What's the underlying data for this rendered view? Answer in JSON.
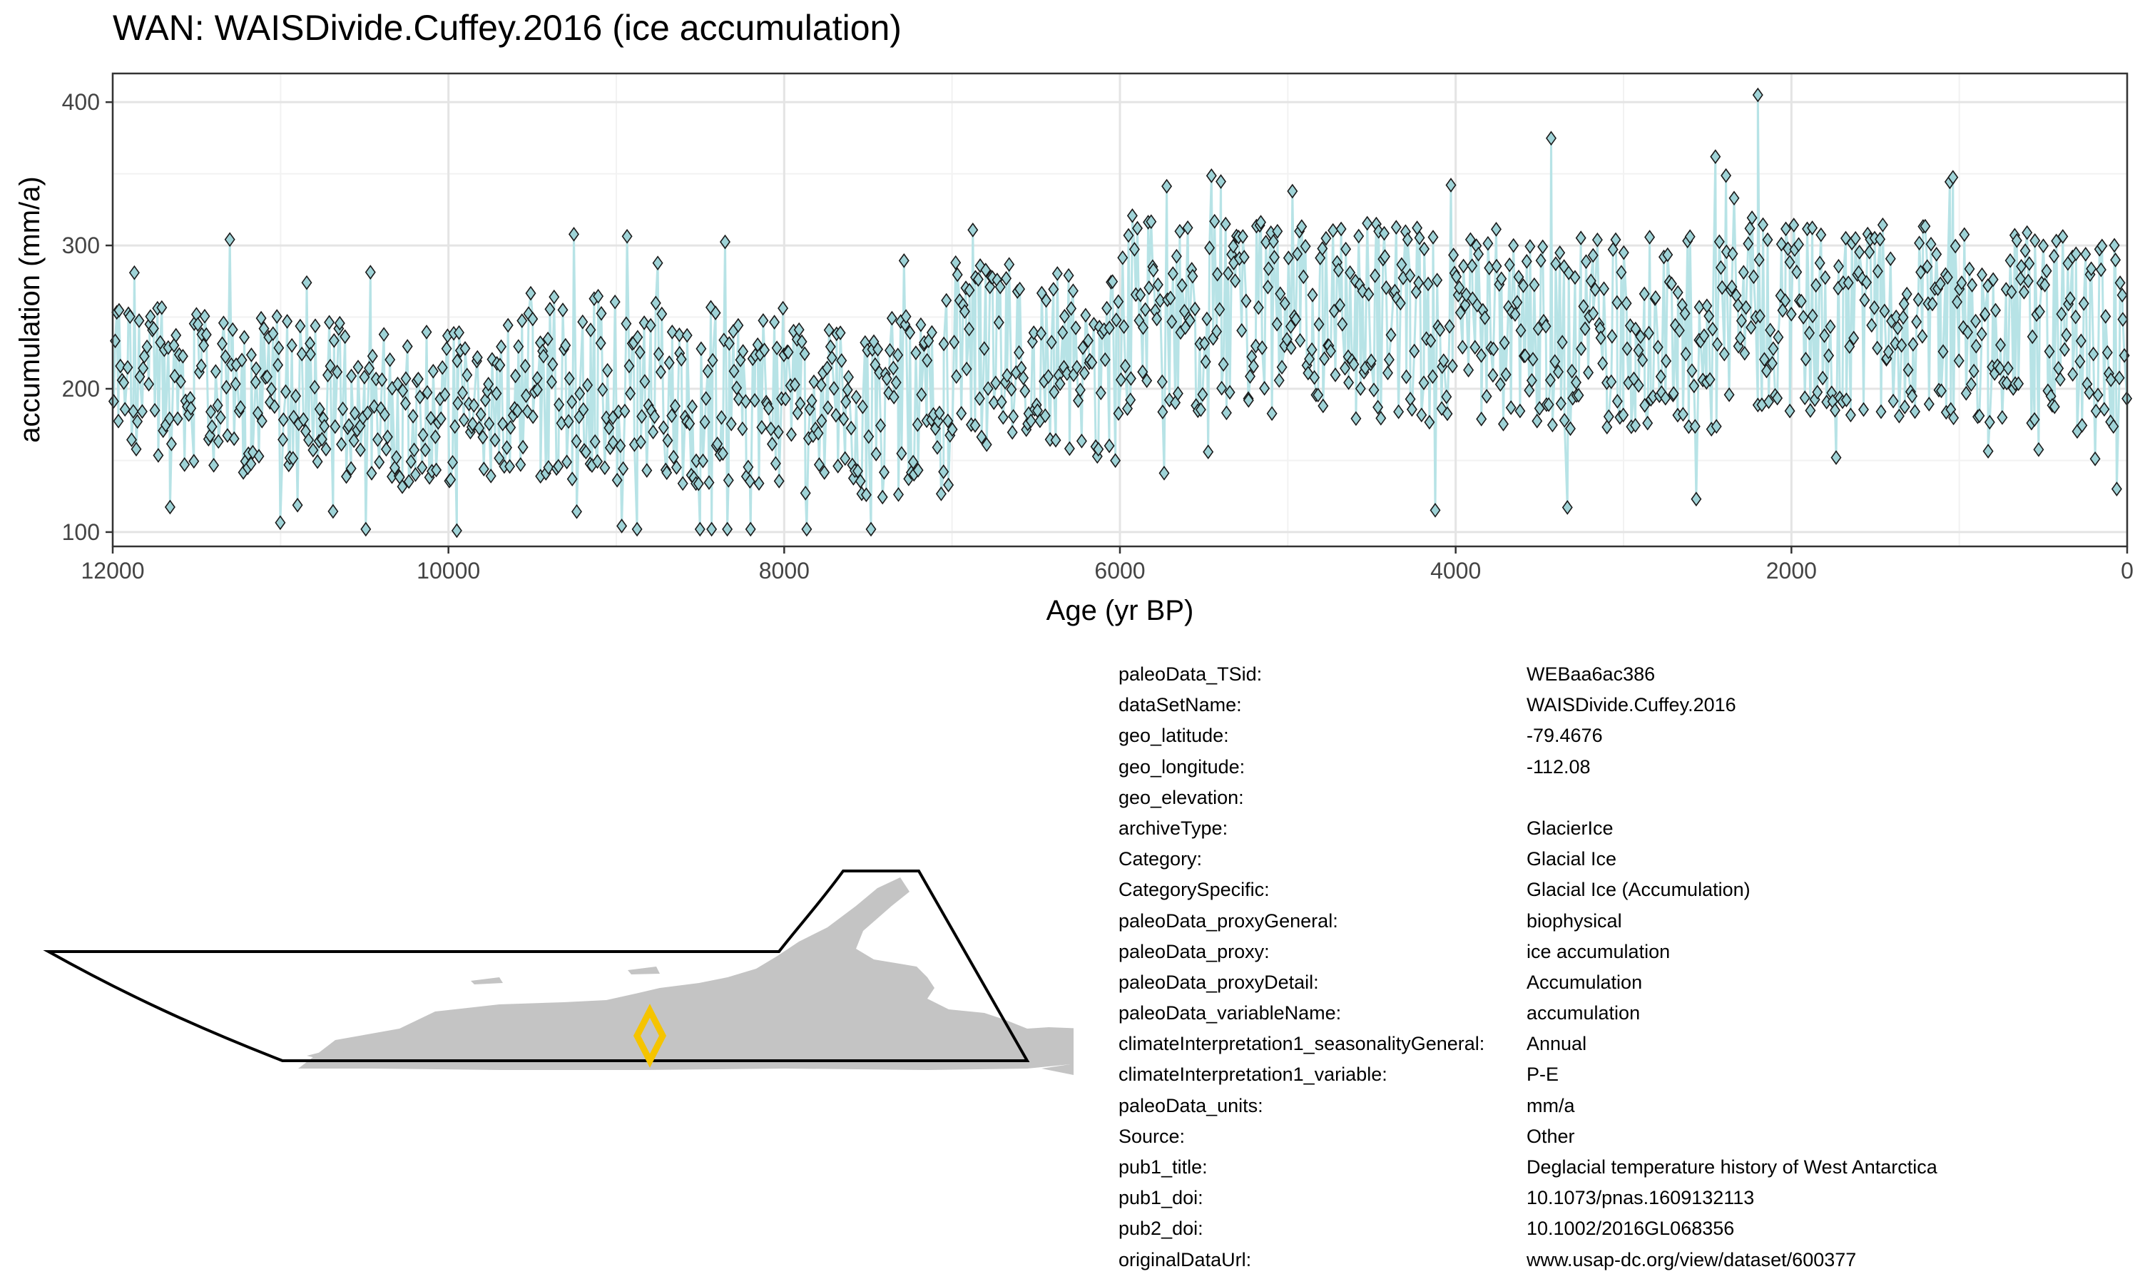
{
  "chart_data": {
    "type": "scatter",
    "title": "WAN: WAISDivide.Cuffey.2016 (ice accumulation)",
    "xlabel": "Age (yr BP)",
    "ylabel": "accumulation (mm/a)",
    "xlim": [
      12000,
      0
    ],
    "ylim": [
      90,
      420
    ],
    "x_reversed": true,
    "x_ticks": [
      12000,
      10000,
      8000,
      6000,
      4000,
      2000,
      0
    ],
    "y_ticks": [
      100,
      200,
      300,
      400
    ],
    "grid": true,
    "marker": "diamond",
    "marker_fill": "#9fd3d7",
    "marker_edge": "#1a1a1a",
    "line_color": "#b7e3e6",
    "segments": [
      {
        "x": [
          12000,
          11400
        ],
        "center": 205,
        "amp": 55
      },
      {
        "x": [
          11400,
          9650
        ],
        "center": 190,
        "amp": 55
      },
      {
        "x": [
          9650,
          7050
        ],
        "center": 195,
        "amp": 65
      },
      {
        "x": [
          7050,
          6000
        ],
        "center": 220,
        "amp": 65
      },
      {
        "x": [
          6000,
          2280
        ],
        "center": 245,
        "amp": 70
      },
      {
        "x": [
          2280,
          0
        ],
        "center": 245,
        "amp": 70
      }
    ],
    "max_point": {
      "x": 2200,
      "y": 405
    },
    "min_point": {
      "x": 9950,
      "y": 101
    }
  },
  "map": {
    "site_marker_color": "#f5c400",
    "land_color": "#c4c4c4"
  },
  "metadata": [
    {
      "key": "paleoData_TSid:",
      "value": "WEBaa6ac386"
    },
    {
      "key": "dataSetName:",
      "value": "WAISDivide.Cuffey.2016"
    },
    {
      "key": "geo_latitude:",
      "value": "-79.4676"
    },
    {
      "key": "geo_longitude:",
      "value": "-112.08"
    },
    {
      "key": "geo_elevation:",
      "value": ""
    },
    {
      "key": "archiveType:",
      "value": "GlacierIce"
    },
    {
      "key": "Category:",
      "value": "Glacial Ice"
    },
    {
      "key": "CategorySpecific:",
      "value": "Glacial Ice (Accumulation)"
    },
    {
      "key": "paleoData_proxyGeneral:",
      "value": "biophysical"
    },
    {
      "key": "paleoData_proxy:",
      "value": "ice accumulation"
    },
    {
      "key": "paleoData_proxyDetail:",
      "value": "Accumulation"
    },
    {
      "key": "paleoData_variableName:",
      "value": "accumulation"
    },
    {
      "key": "climateInterpretation1_seasonalityGeneral:",
      "value": "Annual"
    },
    {
      "key": "climateInterpretation1_variable:",
      "value": "P-E"
    },
    {
      "key": "paleoData_units:",
      "value": "mm/a"
    },
    {
      "key": "Source:",
      "value": "Other"
    },
    {
      "key": "pub1_title:",
      "value": "Deglacial temperature history of West Antarctica"
    },
    {
      "key": "pub1_doi:",
      "value": "10.1073/pnas.1609132113"
    },
    {
      "key": "pub2_doi:",
      "value": "10.1002/2016GL068356"
    },
    {
      "key": "originalDataUrl:",
      "value": "www.usap-dc.org/view/dataset/600377"
    }
  ]
}
